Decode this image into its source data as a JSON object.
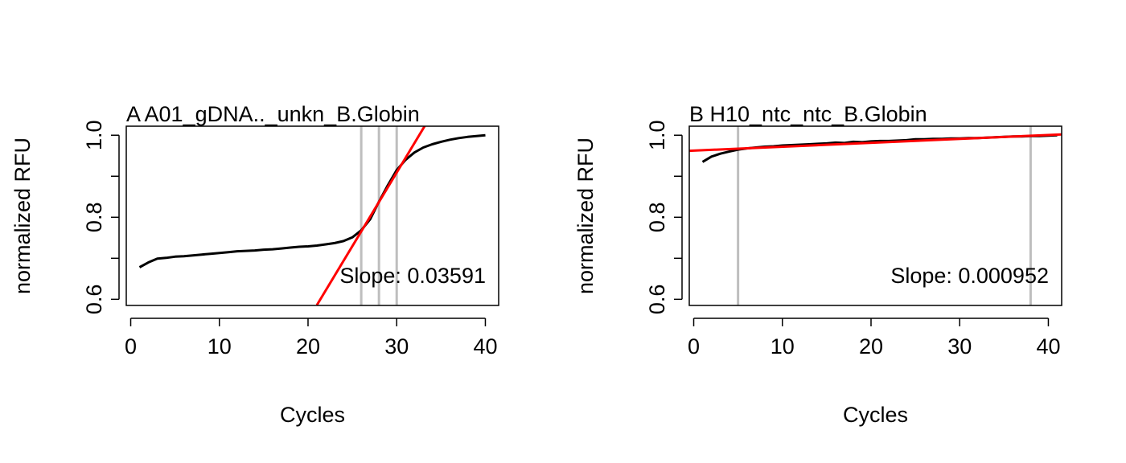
{
  "chart_data": [
    {
      "type": "line",
      "title": "A A01_gDNA.._unkn_B.Globin",
      "xlabel": "Cycles",
      "ylabel": "normalized RFU",
      "xlim": [
        -0.5,
        41.5
      ],
      "ylim": [
        0.585,
        1.022
      ],
      "xticks": [
        0,
        10,
        20,
        30,
        40
      ],
      "yticks": [
        0.6,
        0.7,
        0.8,
        0.9,
        1.0
      ],
      "ytick_labels": [
        "0.6",
        "0.8",
        "1.0"
      ],
      "slope_label": "Slope:  0.03591",
      "curve": {
        "x": [
          1,
          2,
          3,
          4,
          5,
          6,
          7,
          8,
          9,
          10,
          11,
          12,
          13,
          14,
          15,
          16,
          17,
          18,
          19,
          20,
          21,
          22,
          23,
          24,
          25,
          26,
          27,
          28,
          29,
          30,
          31,
          32,
          33,
          34,
          35,
          36,
          37,
          38,
          39,
          40
        ],
        "y": [
          0.678,
          0.69,
          0.699,
          0.701,
          0.704,
          0.705,
          0.707,
          0.709,
          0.711,
          0.713,
          0.715,
          0.717,
          0.718,
          0.719,
          0.721,
          0.722,
          0.724,
          0.726,
          0.728,
          0.729,
          0.731,
          0.734,
          0.737,
          0.742,
          0.751,
          0.768,
          0.795,
          0.838,
          0.878,
          0.915,
          0.94,
          0.958,
          0.97,
          0.978,
          0.984,
          0.989,
          0.993,
          0.996,
          0.998,
          1.0
        ]
      },
      "fit_line": {
        "x": [
          21.0,
          33.15
        ],
        "y": [
          0.586,
          1.022
        ]
      },
      "vlines": [
        26,
        28,
        30
      ],
      "colors": {
        "curve": "#000000",
        "fit": "#ff0000",
        "vline": "#bebebe"
      }
    },
    {
      "type": "line",
      "title": "B H10_ntc_ntc_B.Globin",
      "xlabel": "Cycles",
      "ylabel": "normalized RFU",
      "xlim": [
        -0.5,
        41.5
      ],
      "ylim": [
        0.585,
        1.022
      ],
      "xticks": [
        0,
        10,
        20,
        30,
        40
      ],
      "yticks": [
        0.6,
        0.7,
        0.8,
        0.9,
        1.0
      ],
      "ytick_labels": [
        "0.6",
        "0.8",
        "1.0"
      ],
      "slope_label": "Slope:  0.000952",
      "curve": {
        "x": [
          1,
          2,
          3,
          4,
          5,
          6,
          7,
          8,
          9,
          10,
          11,
          12,
          13,
          14,
          15,
          16,
          17,
          18,
          19,
          20,
          21,
          22,
          23,
          24,
          25,
          26,
          27,
          28,
          29,
          30,
          31,
          32,
          33,
          34,
          35,
          36,
          37,
          38,
          39,
          40,
          41
        ],
        "y": [
          0.935,
          0.948,
          0.955,
          0.96,
          0.965,
          0.968,
          0.97,
          0.972,
          0.973,
          0.975,
          0.976,
          0.977,
          0.978,
          0.979,
          0.98,
          0.982,
          0.981,
          0.984,
          0.983,
          0.985,
          0.986,
          0.986,
          0.987,
          0.988,
          0.99,
          0.99,
          0.991,
          0.991,
          0.992,
          0.992,
          0.993,
          0.993,
          0.994,
          0.995,
          0.996,
          0.997,
          0.997,
          0.998,
          0.998,
          0.999,
          1.0
        ]
      },
      "fit_line": {
        "x": [
          -0.5,
          41.5
        ],
        "y": [
          0.962,
          1.002
        ]
      },
      "vlines": [
        5,
        38
      ],
      "colors": {
        "curve": "#000000",
        "fit": "#ff0000",
        "vline": "#bebebe"
      }
    }
  ]
}
